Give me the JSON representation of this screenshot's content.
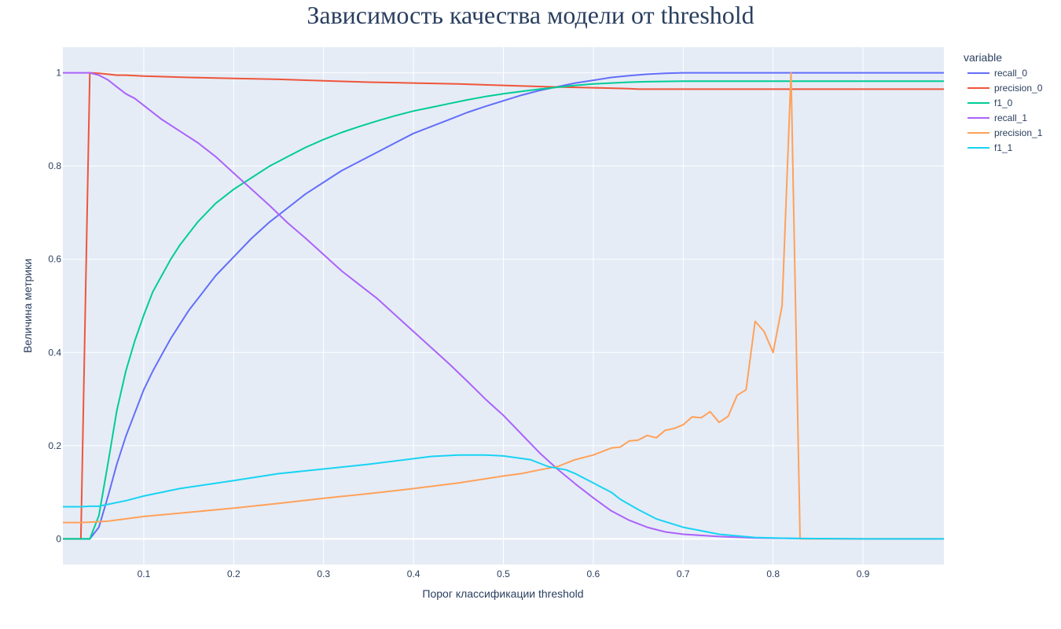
{
  "chart_data": {
    "type": "line",
    "title": "Зависимость качества модели от threshold",
    "xlabel": "Порог классификации threshold",
    "ylabel": "Величина метрики",
    "xlim": [
      0.01,
      0.99
    ],
    "ylim": [
      -0.055,
      1.055
    ],
    "grid": true,
    "legend_title": "variable",
    "legend_position": "right",
    "x_ticks": [
      "0.1",
      "0.2",
      "0.3",
      "0.4",
      "0.5",
      "0.6",
      "0.7",
      "0.8",
      "0.9"
    ],
    "y_ticks": [
      "0",
      "0.2",
      "0.4",
      "0.6",
      "0.8",
      "1"
    ],
    "series": [
      {
        "name": "recall_0",
        "color": "#636efa",
        "x": [
          0.01,
          0.02,
          0.03,
          0.04,
          0.05,
          0.06,
          0.07,
          0.08,
          0.09,
          0.1,
          0.11,
          0.12,
          0.13,
          0.14,
          0.15,
          0.16,
          0.18,
          0.2,
          0.22,
          0.24,
          0.26,
          0.28,
          0.3,
          0.32,
          0.34,
          0.36,
          0.38,
          0.4,
          0.42,
          0.44,
          0.46,
          0.48,
          0.5,
          0.52,
          0.54,
          0.56,
          0.58,
          0.6,
          0.62,
          0.64,
          0.66,
          0.68,
          0.7,
          0.75,
          0.8,
          0.85,
          0.9,
          0.95,
          0.99
        ],
        "y": [
          0,
          0,
          0,
          0,
          0.025,
          0.09,
          0.16,
          0.22,
          0.27,
          0.32,
          0.36,
          0.395,
          0.43,
          0.46,
          0.49,
          0.515,
          0.565,
          0.605,
          0.645,
          0.68,
          0.71,
          0.74,
          0.765,
          0.79,
          0.81,
          0.83,
          0.85,
          0.87,
          0.885,
          0.9,
          0.915,
          0.928,
          0.94,
          0.952,
          0.962,
          0.97,
          0.978,
          0.984,
          0.99,
          0.994,
          0.997,
          0.999,
          1,
          1,
          1,
          1,
          1,
          1,
          1
        ]
      },
      {
        "name": "precision_0",
        "color": "#ef553b",
        "x": [
          0.01,
          0.02,
          0.03,
          0.04,
          0.05,
          0.06,
          0.07,
          0.08,
          0.1,
          0.15,
          0.2,
          0.25,
          0.3,
          0.35,
          0.4,
          0.45,
          0.5,
          0.55,
          0.6,
          0.64,
          0.65,
          0.7,
          0.8,
          0.9,
          0.99
        ],
        "y": [
          0,
          0,
          0,
          1,
          0.999,
          0.997,
          0.995,
          0.995,
          0.993,
          0.99,
          0.988,
          0.986,
          0.983,
          0.98,
          0.978,
          0.976,
          0.973,
          0.97,
          0.968,
          0.966,
          0.965,
          0.965,
          0.965,
          0.965,
          0.965
        ]
      },
      {
        "name": "f1_0",
        "color": "#00cc96",
        "x": [
          0.01,
          0.02,
          0.03,
          0.04,
          0.05,
          0.06,
          0.07,
          0.08,
          0.09,
          0.1,
          0.11,
          0.12,
          0.13,
          0.14,
          0.16,
          0.18,
          0.2,
          0.22,
          0.24,
          0.26,
          0.28,
          0.3,
          0.32,
          0.34,
          0.36,
          0.38,
          0.4,
          0.42,
          0.44,
          0.46,
          0.48,
          0.5,
          0.52,
          0.54,
          0.56,
          0.58,
          0.6,
          0.62,
          0.64,
          0.66,
          0.7,
          0.8,
          0.9,
          0.99
        ],
        "y": [
          0,
          0,
          0,
          0,
          0.05,
          0.16,
          0.275,
          0.36,
          0.425,
          0.48,
          0.53,
          0.565,
          0.6,
          0.63,
          0.68,
          0.72,
          0.75,
          0.775,
          0.8,
          0.82,
          0.84,
          0.857,
          0.872,
          0.885,
          0.897,
          0.908,
          0.918,
          0.926,
          0.934,
          0.942,
          0.949,
          0.955,
          0.96,
          0.965,
          0.969,
          0.973,
          0.976,
          0.978,
          0.98,
          0.981,
          0.982,
          0.982,
          0.982,
          0.982
        ]
      },
      {
        "name": "recall_1",
        "color": "#ab63fa",
        "x": [
          0.01,
          0.02,
          0.03,
          0.04,
          0.05,
          0.06,
          0.07,
          0.08,
          0.09,
          0.1,
          0.12,
          0.14,
          0.16,
          0.18,
          0.2,
          0.22,
          0.24,
          0.26,
          0.28,
          0.3,
          0.32,
          0.34,
          0.36,
          0.38,
          0.4,
          0.42,
          0.44,
          0.46,
          0.48,
          0.5,
          0.52,
          0.54,
          0.56,
          0.58,
          0.6,
          0.62,
          0.64,
          0.66,
          0.68,
          0.7,
          0.74,
          0.78,
          0.82,
          0.9,
          0.99
        ],
        "y": [
          1,
          1,
          1,
          1,
          0.995,
          0.985,
          0.97,
          0.955,
          0.945,
          0.93,
          0.9,
          0.875,
          0.85,
          0.82,
          0.785,
          0.75,
          0.715,
          0.678,
          0.645,
          0.61,
          0.575,
          0.545,
          0.515,
          0.48,
          0.445,
          0.41,
          0.375,
          0.338,
          0.3,
          0.265,
          0.225,
          0.185,
          0.15,
          0.118,
          0.088,
          0.06,
          0.04,
          0.025,
          0.015,
          0.01,
          0.005,
          0.002,
          0.001,
          0,
          0
        ]
      },
      {
        "name": "precision_1",
        "color": "#ffa15a",
        "x": [
          0.01,
          0.02,
          0.03,
          0.04,
          0.05,
          0.06,
          0.08,
          0.1,
          0.15,
          0.2,
          0.25,
          0.3,
          0.35,
          0.4,
          0.45,
          0.5,
          0.52,
          0.54,
          0.56,
          0.58,
          0.6,
          0.62,
          0.63,
          0.64,
          0.65,
          0.66,
          0.67,
          0.68,
          0.69,
          0.7,
          0.71,
          0.72,
          0.73,
          0.74,
          0.75,
          0.76,
          0.77,
          0.78,
          0.79,
          0.8,
          0.81,
          0.82,
          0.83,
          0.84,
          0.9,
          0.99
        ],
        "y": [
          0.035,
          0.035,
          0.035,
          0.036,
          0.037,
          0.038,
          0.043,
          0.048,
          0.057,
          0.066,
          0.076,
          0.087,
          0.097,
          0.108,
          0.12,
          0.135,
          0.14,
          0.148,
          0.155,
          0.17,
          0.18,
          0.195,
          0.197,
          0.21,
          0.212,
          0.222,
          0.217,
          0.233,
          0.237,
          0.245,
          0.262,
          0.26,
          0.273,
          0.25,
          0.263,
          0.308,
          0.32,
          0.467,
          0.445,
          0.4,
          0.5,
          1,
          0,
          0,
          0,
          0
        ]
      },
      {
        "name": "f1_1",
        "color": "#19d3f3",
        "x": [
          0.01,
          0.02,
          0.03,
          0.04,
          0.05,
          0.06,
          0.08,
          0.1,
          0.14,
          0.2,
          0.25,
          0.3,
          0.35,
          0.4,
          0.42,
          0.45,
          0.48,
          0.5,
          0.53,
          0.55,
          0.57,
          0.58,
          0.6,
          0.62,
          0.63,
          0.65,
          0.67,
          0.7,
          0.74,
          0.78,
          0.82,
          0.9,
          0.99
        ],
        "y": [
          0.069,
          0.069,
          0.069,
          0.07,
          0.07,
          0.074,
          0.082,
          0.092,
          0.108,
          0.125,
          0.14,
          0.15,
          0.16,
          0.172,
          0.177,
          0.18,
          0.18,
          0.178,
          0.17,
          0.155,
          0.148,
          0.14,
          0.12,
          0.1,
          0.085,
          0.063,
          0.043,
          0.025,
          0.01,
          0.003,
          0.001,
          0,
          0
        ]
      }
    ]
  }
}
